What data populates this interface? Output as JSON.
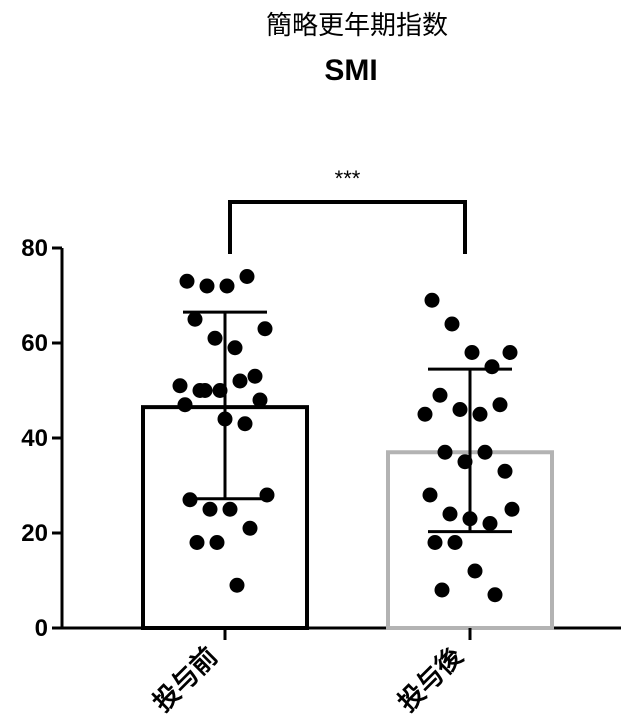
{
  "chart_data": {
    "type": "bar",
    "title": "簡略更年期指数",
    "subtitle": "SMI",
    "xlabel": "",
    "ylabel": "",
    "ylim": [
      0,
      80
    ],
    "yticks": [
      0,
      20,
      40,
      60,
      80
    ],
    "categories": [
      "投与前",
      "投与後"
    ],
    "bars": [
      {
        "category": "投与前",
        "mean": 46.5,
        "sd_low": 27.2,
        "sd_high": 66.5,
        "bar_color": "#000000"
      },
      {
        "category": "投与後",
        "mean": 37.0,
        "sd_low": 20.3,
        "sd_high": 54.5,
        "bar_color": "#b3b3b3"
      }
    ],
    "points": [
      [
        73,
        72,
        72,
        74,
        63,
        65,
        61,
        59,
        53,
        51,
        50,
        50,
        52,
        48,
        47,
        50,
        44,
        43,
        28,
        27,
        25,
        25,
        21,
        18,
        18,
        9
      ],
      [
        69,
        64,
        58,
        55,
        58,
        49,
        46,
        45,
        47,
        45,
        37,
        35,
        37,
        33,
        28,
        24,
        23,
        22,
        25,
        18,
        18,
        12,
        7,
        8
      ]
    ],
    "significance": {
      "label": "***",
      "between": [
        "投与前",
        "投与後"
      ]
    },
    "grid": false,
    "legend": "none"
  }
}
